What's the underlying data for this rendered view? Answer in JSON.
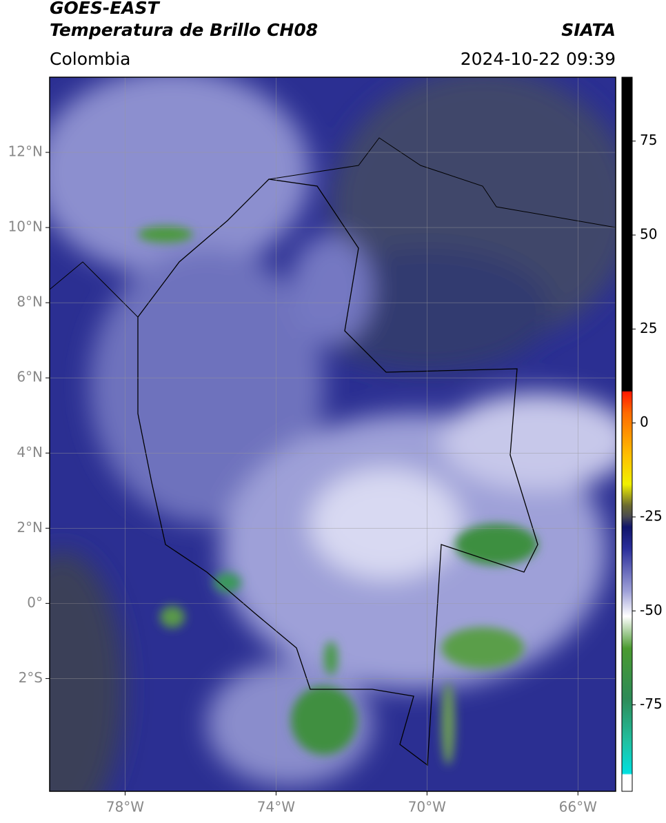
{
  "header": {
    "satellite": "GOES-EAST",
    "product": "Temperatura de Brillo CH08",
    "source": "SIATA",
    "region": "Colombia",
    "datetime": "2024-10-22 09:39"
  },
  "map": {
    "lon_range": [
      -80,
      -65
    ],
    "lat_range": [
      -5,
      14
    ],
    "lon_ticks": [
      {
        "value": -78,
        "label": "78°W"
      },
      {
        "value": -74,
        "label": "74°W"
      },
      {
        "value": -70,
        "label": "70°W"
      },
      {
        "value": -66,
        "label": "66°W"
      }
    ],
    "lat_ticks": [
      {
        "value": 12,
        "label": "12°N"
      },
      {
        "value": 10,
        "label": "10°N"
      },
      {
        "value": 8,
        "label": "8°N"
      },
      {
        "value": 6,
        "label": "6°N"
      },
      {
        "value": 4,
        "label": "4°N"
      },
      {
        "value": 2,
        "label": "2°N"
      },
      {
        "value": 0,
        "label": "0°"
      },
      {
        "value": -2,
        "label": "2°S"
      }
    ],
    "grid": true
  },
  "colorbar": {
    "lim": [
      -98,
      92
    ],
    "ticks": [
      75,
      50,
      25,
      0,
      -25,
      -50,
      -75
    ]
  }
}
